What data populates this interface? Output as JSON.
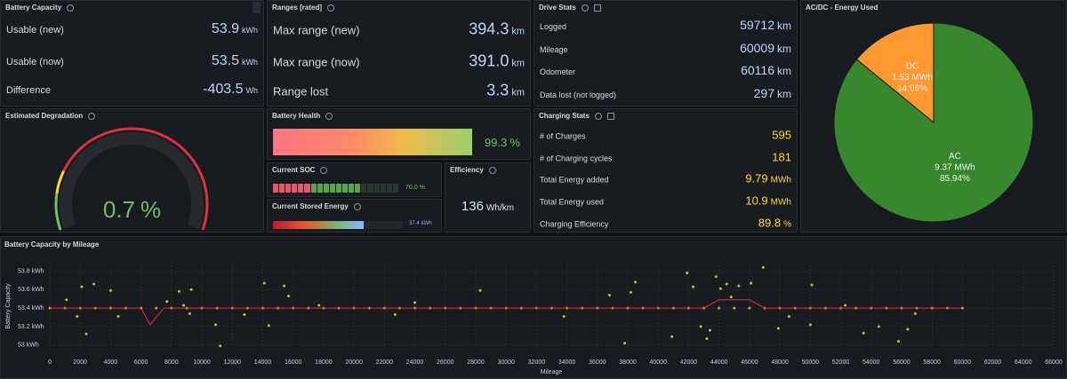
{
  "panels": {
    "battery_capacity": {
      "title": "Battery Capacity",
      "rows": [
        {
          "label": "Usable (new)",
          "value": "53.9",
          "unit": "kWh"
        },
        {
          "label": "Usable (now)",
          "value": "53.5",
          "unit": "kWh"
        },
        {
          "label": "Difference",
          "value": "-403.5",
          "unit": "Wh"
        }
      ]
    },
    "ranges": {
      "title": "Ranges [rated]",
      "rows": [
        {
          "label": "Max range (new)",
          "value": "394.3",
          "unit": "km"
        },
        {
          "label": "Max range (now)",
          "value": "391.0",
          "unit": "km"
        },
        {
          "label": "Range lost",
          "value": "3.3",
          "unit": "km"
        }
      ]
    },
    "drive_stats": {
      "title": "Drive Stats",
      "rows": [
        {
          "label": "Logged",
          "value": "59712",
          "unit": "km"
        },
        {
          "label": "Mileage",
          "value": "60009",
          "unit": "km"
        },
        {
          "label": "Odometer",
          "value": "60116",
          "unit": "km"
        },
        {
          "label": "Data lost (not logged)",
          "value": "297",
          "unit": "km"
        }
      ]
    },
    "degradation": {
      "title": "Estimated Degradation",
      "value": "0.7",
      "unit": "%"
    },
    "battery_health": {
      "title": "Battery Health",
      "value": "99.3",
      "unit": "%"
    },
    "soc": {
      "title": "Current SOC",
      "value": "70.0",
      "unit": "%"
    },
    "stored_energy": {
      "title": "Current Stored Energy",
      "value": "37.4",
      "unit": "kWh"
    },
    "efficiency": {
      "title": "Efficiency",
      "value": "136",
      "unit": "Wh/km"
    },
    "charging_stats": {
      "title": "Charging Stats",
      "rows": [
        {
          "label": "# of Charges",
          "value": "595",
          "unit": ""
        },
        {
          "label": "# of Charging cycles",
          "value": "181",
          "unit": ""
        },
        {
          "label": "Total Energy added",
          "value": "9.79",
          "unit": "MWh"
        },
        {
          "label": "Total Energy used",
          "value": "10.9",
          "unit": "MWh"
        },
        {
          "label": "Charging Efficiency",
          "value": "89.8",
          "unit": "%"
        }
      ]
    }
  },
  "chart_data": [
    {
      "type": "pie",
      "title": "AC/DC - Energy Used",
      "categories": [
        "DC",
        "AC"
      ],
      "values": [
        14.06,
        85.94
      ],
      "value_labels": [
        "14.06%",
        "85.94%"
      ],
      "energy_labels": [
        "1.53 MWh",
        "9.37 MWh"
      ],
      "colors": [
        "#ff9830",
        "#37872d"
      ]
    },
    {
      "type": "scatter",
      "title": "Battery Capacity by Mileage",
      "x_label": "Mileage",
      "y_label": "Battery Capacity",
      "xlim": [
        0,
        66000
      ],
      "xticks": [
        0,
        2000,
        4000,
        6000,
        8000,
        10000,
        12000,
        14000,
        16000,
        18000,
        20000,
        22000,
        24000,
        26000,
        28000,
        30000,
        32000,
        34000,
        36000,
        38000,
        40000,
        42000,
        44000,
        46000,
        48000,
        50000,
        52000,
        54000,
        56000,
        58000,
        60000,
        62000,
        64000,
        66000
      ],
      "ylim": [
        52.94,
        53.9
      ],
      "yticks": [
        {
          "value": 53,
          "label": "53 kWh"
        },
        {
          "value": 53.2,
          "label": "53.2 kWh"
        },
        {
          "value": 53.4,
          "label": "53.4 kWh"
        },
        {
          "value": 53.6,
          "label": "53.6 kWh"
        },
        {
          "value": 53.8,
          "label": "53.8 kWh"
        }
      ],
      "grid": true,
      "series": [
        {
          "type": "scatter",
          "color": "#e0a020",
          "x": [
            0,
            1000,
            2000,
            3000,
            4000,
            5000,
            6000,
            7000,
            8000,
            9000,
            10000,
            11000,
            12000,
            13000,
            14000,
            15000,
            16000,
            17000,
            18000,
            19000,
            20000,
            21000,
            22000,
            23000,
            24000,
            25000,
            26000,
            27000,
            28000,
            29000,
            30000,
            31000,
            32000,
            33000,
            34000,
            35000,
            36000,
            37000,
            38000,
            39000,
            40000,
            41000,
            42000,
            43000,
            44000,
            45000,
            46000,
            47000,
            48000,
            49000,
            50000,
            51000,
            52000,
            53000,
            54000,
            55000,
            56000,
            57000,
            58000,
            59000,
            60000
          ],
          "values": [
            53.4,
            53.4,
            53.4,
            53.4,
            53.4,
            53.4,
            53.4,
            53.4,
            53.4,
            53.4,
            53.4,
            53.4,
            53.4,
            53.4,
            53.4,
            53.4,
            53.4,
            53.4,
            53.4,
            53.4,
            53.4,
            53.4,
            53.4,
            53.4,
            53.4,
            53.4,
            53.4,
            53.4,
            53.4,
            53.4,
            53.4,
            53.4,
            53.4,
            53.4,
            53.4,
            53.4,
            53.4,
            53.4,
            53.4,
            53.4,
            53.4,
            53.4,
            53.4,
            53.4,
            53.4,
            53.4,
            53.4,
            53.4,
            53.4,
            53.4,
            53.4,
            53.4,
            53.4,
            53.4,
            53.4,
            53.4,
            53.4,
            53.4,
            53.4,
            53.4,
            53.4
          ]
        },
        {
          "type": "scatter",
          "color": "#b3c93a",
          "x": [
            1100,
            2100,
            2400,
            2900,
            1800,
            4000,
            4500,
            7700,
            8500,
            8800,
            9300,
            9200,
            10900,
            11200,
            12800,
            14100,
            14400,
            15400,
            15700,
            17700,
            22700,
            24000,
            28300,
            33800,
            36800,
            37800,
            38200,
            38500,
            40900,
            41900,
            42300,
            42800,
            43200,
            43400,
            43800,
            44100,
            44500,
            44800,
            45300,
            46100,
            46900,
            47900,
            48600,
            50000,
            50100,
            52300,
            53500,
            54500,
            55800,
            56400,
            56900
          ],
          "values": [
            53.49,
            53.63,
            53.12,
            53.66,
            53.31,
            53.59,
            53.31,
            53.47,
            53.58,
            53.43,
            53.6,
            53.34,
            53.22,
            52.99,
            53.33,
            53.67,
            53.21,
            53.64,
            53.53,
            53.43,
            53.33,
            53.46,
            53.59,
            53.31,
            53.54,
            53.02,
            53.57,
            53.68,
            53.09,
            53.78,
            53.63,
            53.2,
            53.07,
            53.16,
            53.74,
            53.61,
            53.66,
            53.52,
            53.64,
            53.67,
            53.84,
            53.18,
            53.31,
            53.22,
            53.65,
            53.43,
            53.13,
            53.2,
            53.04,
            53.17,
            53.34
          ]
        },
        {
          "type": "line",
          "color": "#e02f44",
          "x": [
            0,
            6000,
            6600,
            7500,
            43000,
            44000,
            46000,
            47000,
            60000
          ],
          "values": [
            53.4,
            53.4,
            53.22,
            53.4,
            53.4,
            53.49,
            53.49,
            53.4,
            53.4
          ]
        }
      ]
    }
  ]
}
